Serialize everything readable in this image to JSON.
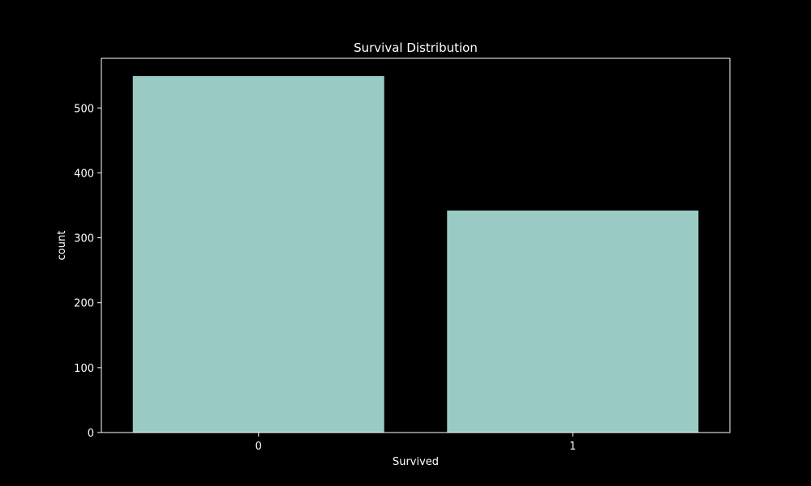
{
  "chart_data": {
    "type": "bar",
    "title": "Survival Distribution",
    "xlabel": "Survived",
    "ylabel": "count",
    "categories": [
      "0",
      "1"
    ],
    "values": [
      549,
      342
    ],
    "ylim": [
      0,
      576.45
    ],
    "yticks": [
      0,
      100,
      200,
      300,
      400,
      500
    ],
    "grid": false,
    "legend": "none",
    "colors": {
      "background": "#000000",
      "bar": "#99cbc4",
      "axes": "#ffffff",
      "text": "#ffffff"
    }
  }
}
